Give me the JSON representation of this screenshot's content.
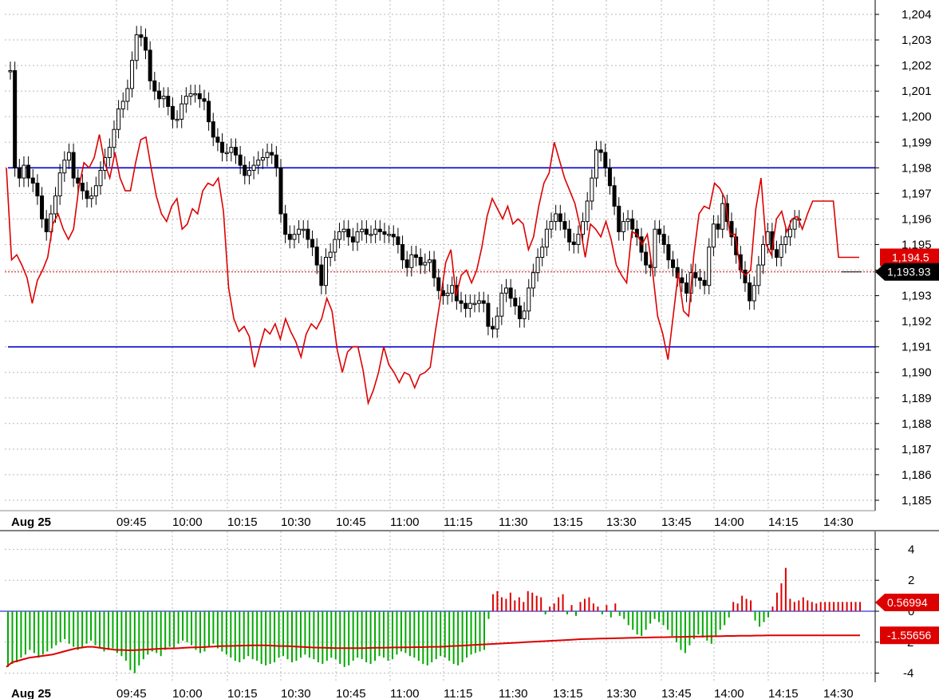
{
  "chart_data": [
    {
      "type": "candlestick",
      "title": "",
      "ylim": [
        1184.2,
        1204.5
      ],
      "y_ticks": [
        "1,185",
        "1,186",
        "1,187",
        "1,188",
        "1,189",
        "1,190",
        "1,191",
        "1,192",
        "1,193",
        "1,194",
        "1,195",
        "1,196",
        "1,197",
        "1,198",
        "1,199",
        "1,200",
        "1,201",
        "1,202",
        "1,203",
        "1,204"
      ],
      "x_labels": [
        "Aug 25",
        "09:45",
        "10:00",
        "10:15",
        "10:30",
        "10:45",
        "11:00",
        "11:15",
        "11:30",
        "13:15",
        "13:30",
        "13:45",
        "14:00",
        "14:15",
        "14:30"
      ],
      "horizontal_lines": [
        {
          "value": 1198,
          "color": "#0000cc"
        },
        {
          "value": 1191,
          "color": "#0000cc"
        }
      ],
      "current_price": {
        "value": 1193.93,
        "label": "1,193.93",
        "color": "#000000"
      },
      "overlay_series": {
        "name": "",
        "color": "#dd0000",
        "last_label": "1,194.5",
        "values": [
          1198,
          1194.4,
          1194.6,
          1194.2,
          1193.7,
          1192.7,
          1193.6,
          1194.0,
          1194.5,
          1195.8,
          1196.2,
          1195.6,
          1195.2,
          1195.6,
          1197.2,
          1198.2,
          1198.0,
          1198.4,
          1199.3,
          1198.2,
          1197.6,
          1198.6,
          1197.6,
          1197.1,
          1197.1,
          1198.2,
          1199.1,
          1199.2,
          1198.0,
          1196.9,
          1196.2,
          1195.9,
          1196.5,
          1196.8,
          1195.6,
          1195.8,
          1196.4,
          1196.2,
          1197.1,
          1197.4,
          1197.3,
          1197.6,
          1196.3,
          1193.3,
          1192.1,
          1191.6,
          1191.8,
          1191.4,
          1190.2,
          1191.0,
          1191.7,
          1191.5,
          1191.9,
          1191.3,
          1192.1,
          1191.6,
          1191.2,
          1190.6,
          1191.5,
          1191.9,
          1191.7,
          1192.1,
          1192.9,
          1192.4,
          1190.9,
          1190.0,
          1190.8,
          1191.0,
          1191.0,
          1190.1,
          1188.8,
          1189.3,
          1190.0,
          1191.0,
          1190.3,
          1190.0,
          1189.6,
          1190.0,
          1189.9,
          1189.4,
          1189.9,
          1190.0,
          1190.2,
          1191.6,
          1192.9,
          1194.3,
          1194.8,
          1193.0,
          1193.8,
          1194.0,
          1193.5,
          1194.0,
          1194.9,
          1196.1,
          1196.8,
          1196.4,
          1196.0,
          1196.5,
          1195.8,
          1196.0,
          1195.8,
          1194.8,
          1195.3,
          1196.5,
          1197.4,
          1197.8,
          1199.0,
          1198.3,
          1197.6,
          1197.1,
          1196.6,
          1195.7,
          1194.5,
          1195.8,
          1195.6,
          1195.3,
          1195.9,
          1195.2,
          1194.2,
          1193.8,
          1193.5,
          1195.5,
          1195.4,
          1195.0,
          1195.4,
          1194.0,
          1192.2,
          1191.5,
          1190.5,
          1192.2,
          1193.9,
          1192.4,
          1192.2,
          1194.6,
          1196.2,
          1196.5,
          1196.4,
          1197.4,
          1197.2,
          1196.8,
          1195.4,
          1195.4,
          1194.0,
          1193.8,
          1194.0,
          1196.4,
          1197.6,
          1195.0,
          1194.6,
          1196.0,
          1196.3,
          1195.5,
          1196.0,
          1196.1,
          1195.6,
          1196.2,
          1196.7,
          1196.7,
          1196.7,
          1196.7,
          1196.7,
          1194.5,
          1194.5,
          1194.5,
          1194.5,
          1194.5
        ]
      },
      "candle_closes": [
        1201.8,
        1198.0,
        1197.6,
        1198.1,
        1197.6,
        1197.4,
        1196.9,
        1196.0,
        1195.5,
        1196.2,
        1196.9,
        1197.8,
        1198.3,
        1198.6,
        1197.6,
        1197.4,
        1197.1,
        1196.8,
        1196.9,
        1197.3,
        1197.9,
        1198.4,
        1198.8,
        1199.5,
        1200.3,
        1200.6,
        1201.1,
        1202.2,
        1203.2,
        1203.1,
        1202.6,
        1201.4,
        1201.0,
        1200.7,
        1200.8,
        1200.4,
        1199.9,
        1199.9,
        1200.5,
        1200.8,
        1200.9,
        1200.9,
        1200.7,
        1200.6,
        1199.8,
        1199.2,
        1199.0,
        1198.6,
        1198.6,
        1198.8,
        1198.5,
        1198.1,
        1197.7,
        1197.9,
        1198.1,
        1198.3,
        1198.4,
        1198.6,
        1198.5,
        1198.0,
        1196.2,
        1195.4,
        1195.2,
        1195.4,
        1195.6,
        1195.6,
        1195.2,
        1194.9,
        1194.2,
        1193.4,
        1194.5,
        1194.7,
        1195.2,
        1195.5,
        1195.6,
        1195.3,
        1195.1,
        1195.5,
        1195.6,
        1195.4,
        1195.4,
        1195.6,
        1195.5,
        1195.4,
        1195.4,
        1195.3,
        1195.0,
        1194.4,
        1194.1,
        1194.6,
        1194.5,
        1194.2,
        1194.3,
        1194.4,
        1193.7,
        1193.2,
        1193.0,
        1193.1,
        1193.4,
        1192.8,
        1192.7,
        1192.5,
        1192.7,
        1192.7,
        1192.8,
        1192.7,
        1191.8,
        1191.7,
        1192.2,
        1193.1,
        1193.3,
        1192.9,
        1192.6,
        1192.1,
        1192.4,
        1193.3,
        1193.9,
        1194.5,
        1194.9,
        1195.6,
        1195.9,
        1196.2,
        1195.9,
        1195.6,
        1195.1,
        1195.0,
        1195.4,
        1195.9,
        1196.7,
        1197.6,
        1198.7,
        1198.6,
        1198.0,
        1197.3,
        1196.5,
        1195.5,
        1195.9,
        1196.0,
        1195.6,
        1195.3,
        1194.7,
        1194.2,
        1194.1,
        1195.6,
        1195.4,
        1195.0,
        1194.4,
        1194.1,
        1193.7,
        1193.5,
        1193.1,
        1193.9,
        1193.7,
        1193.6,
        1193.4,
        1194.9,
        1195.8,
        1195.6,
        1196.6,
        1195.9,
        1195.3,
        1194.6,
        1194.0,
        1193.5,
        1192.8,
        1193.4,
        1194.2,
        1195.0,
        1195.5,
        1194.8,
        1194.5,
        1195.0,
        1195.3,
        1195.6,
        1196.0,
        1196.0
      ]
    },
    {
      "type": "bar",
      "title": "",
      "ylim": [
        -5.2,
        5.8
      ],
      "y_ticks": [
        "-4",
        "-2",
        "0",
        "2",
        "4"
      ],
      "x_labels": [
        "Aug 25",
        "09:45",
        "10:00",
        "10:15",
        "10:30",
        "10:45",
        "11:00",
        "11:15",
        "11:30",
        "13:15",
        "13:30",
        "13:45",
        "14:00",
        "14:15",
        "14:30"
      ],
      "positive_color": "#dd0000",
      "negative_color": "#00aa00",
      "histogram_label": "0.56994",
      "line_label": "-1.55656",
      "line_color": "#dd0000",
      "histogram": [
        -3.6,
        -3.4,
        -3.3,
        -3.0,
        -2.8,
        -2.5,
        -2.7,
        -3.0,
        -2.8,
        -2.6,
        -2.4,
        -2.2,
        -2.0,
        -1.8,
        -2.1,
        -2.3,
        -2.5,
        -2.4,
        -2.1,
        -1.9,
        -2.2,
        -2.4,
        -2.6,
        -2.5,
        -2.4,
        -2.7,
        -2.9,
        -3.2,
        -3.8,
        -4.0,
        -3.5,
        -3.1,
        -2.8,
        -2.6,
        -2.7,
        -2.9,
        -2.5,
        -2.3,
        -2.4,
        -2.1,
        -1.9,
        -2.0,
        -2.2,
        -2.5,
        -2.7,
        -2.6,
        -2.3,
        -2.1,
        -2.4,
        -2.6,
        -2.8,
        -3.0,
        -3.2,
        -3.3,
        -3.1,
        -2.9,
        -3.1,
        -3.2,
        -3.4,
        -3.5,
        -3.4,
        -3.3,
        -3.0,
        -2.9,
        -3.1,
        -3.3,
        -3.2,
        -3.0,
        -2.8,
        -3.0,
        -3.1,
        -3.3,
        -3.4,
        -3.2,
        -3.0,
        -3.1,
        -3.4,
        -3.6,
        -3.5,
        -3.2,
        -3.0,
        -3.1,
        -3.3,
        -3.4,
        -3.2,
        -2.9,
        -3.0,
        -3.2,
        -3.1,
        -2.8,
        -2.6,
        -2.7,
        -2.9,
        -3.0,
        -3.2,
        -3.4,
        -3.5,
        -3.3,
        -3.1,
        -2.9,
        -3.0,
        -3.2,
        -3.4,
        -3.5,
        -3.3,
        -3.0,
        -2.8,
        -2.7,
        -2.6,
        -2.5,
        -0.5,
        1.1,
        1.3,
        0.9,
        0.8,
        1.2,
        0.7,
        0.9,
        0.6,
        1.3,
        1.2,
        1.0,
        0.9,
        -0.2,
        0.3,
        0.5,
        0.9,
        1.1,
        -0.2,
        0.4,
        -0.3,
        0.6,
        0.8,
        0.9,
        0.5,
        0.3,
        -0.2,
        0.4,
        -0.4,
        0.5,
        -0.3,
        -0.5,
        -0.9,
        -1.2,
        -1.5,
        -1.6,
        -1.2,
        -0.8,
        -0.5,
        -0.7,
        -0.9,
        -1.2,
        -1.6,
        -2.0,
        -2.5,
        -2.7,
        -2.2,
        -1.8,
        -1.5,
        -1.7,
        -1.9,
        -2.1,
        -1.6,
        -1.2,
        -0.9,
        -0.4,
        0.6,
        0.5,
        1.0,
        0.8,
        0.7,
        -0.6,
        -1.0,
        -0.7,
        -0.4,
        0.3,
        1.2,
        1.8,
        2.8,
        0.8,
        0.6,
        0.7,
        0.9,
        0.7,
        0.6,
        0.5,
        0.6,
        0.6,
        0.6,
        0.6,
        0.6,
        0.6,
        0.6,
        0.6,
        0.6,
        0.6
      ],
      "signal": [
        -3.6,
        -3.3,
        -3.2,
        -3.1,
        -3.0,
        -2.95,
        -2.9,
        -2.85,
        -2.8,
        -2.7,
        -2.6,
        -2.5,
        -2.4,
        -2.35,
        -2.3,
        -2.3,
        -2.35,
        -2.4,
        -2.45,
        -2.5,
        -2.5,
        -2.52,
        -2.52,
        -2.5,
        -2.48,
        -2.46,
        -2.44,
        -2.42,
        -2.4,
        -2.4,
        -2.38,
        -2.36,
        -2.34,
        -2.33,
        -2.32,
        -2.3,
        -2.28,
        -2.26,
        -2.25,
        -2.24,
        -2.23,
        -2.22,
        -2.21,
        -2.2,
        -2.2,
        -2.2,
        -2.22,
        -2.24,
        -2.25,
        -2.26,
        -2.28,
        -2.3,
        -2.32,
        -2.34,
        -2.35,
        -2.36,
        -2.37,
        -2.38,
        -2.38,
        -2.38,
        -2.38,
        -2.38,
        -2.38,
        -2.37,
        -2.36,
        -2.36,
        -2.35,
        -2.34,
        -2.34,
        -2.33,
        -2.33,
        -2.32,
        -2.32,
        -2.31,
        -2.3,
        -2.3,
        -2.28,
        -2.26,
        -2.24,
        -2.22,
        -2.2,
        -2.18,
        -2.16,
        -2.14,
        -2.12,
        -2.1,
        -2.08,
        -2.06,
        -2.04,
        -2.02,
        -2.0,
        -1.98,
        -1.96,
        -1.94,
        -1.92,
        -1.9,
        -1.88,
        -1.86,
        -1.84,
        -1.82,
        -1.8,
        -1.79,
        -1.78,
        -1.77,
        -1.76,
        -1.75,
        -1.74,
        -1.73,
        -1.72,
        -1.71,
        -1.7,
        -1.7,
        -1.69,
        -1.68,
        -1.68,
        -1.67,
        -1.66,
        -1.66,
        -1.65,
        -1.64,
        -1.64,
        -1.63,
        -1.62,
        -1.62,
        -1.61,
        -1.6,
        -1.6,
        -1.59,
        -1.58,
        -1.58,
        -1.57,
        -1.57,
        -1.56,
        -1.56,
        -1.56,
        -1.56,
        -1.56,
        -1.56,
        -1.56,
        -1.56,
        -1.56,
        -1.56,
        -1.56,
        -1.56,
        -1.56,
        -1.56,
        -1.56,
        -1.56,
        -1.56
      ]
    }
  ]
}
